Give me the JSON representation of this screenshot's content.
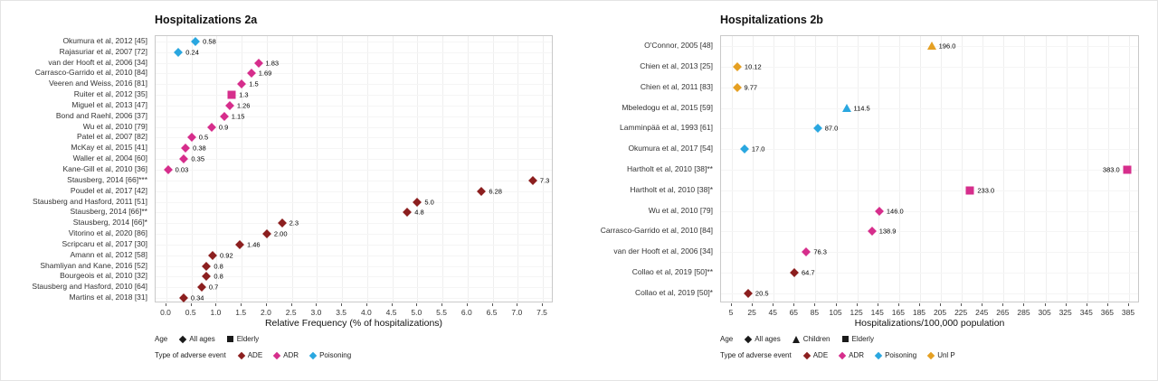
{
  "page": {
    "background": "#ffffff"
  },
  "colors": {
    "ADE": "#8c1f1f",
    "ADR": "#d62e8c",
    "Poisoning": "#2aa7e0",
    "UnlP": "#e5a023",
    "age_legend_marker": "#1a1a1a"
  },
  "chart_data": [
    {
      "type": "scatter",
      "title": "Hospitalizations 2a",
      "xlabel": "Relative Frequency (% of hospitalizations)",
      "ylabel": "",
      "xlim": [
        0,
        7.5
      ],
      "grid": true,
      "legend_position": "bottom",
      "xticks": [
        0,
        0.5,
        1.0,
        1.5,
        2.0,
        2.5,
        3.0,
        3.5,
        4.0,
        4.5,
        5.0,
        5.5,
        6.0,
        6.5,
        7.0,
        7.5
      ],
      "xtick_labels": [
        "0.0",
        "0.5",
        "1.0",
        "1.5",
        "2.0",
        "2.5",
        "3.0",
        "3.5",
        "4.0",
        "4.5",
        "5.0",
        "5.5",
        "6.0",
        "6.5",
        "7.0",
        "7.5"
      ],
      "points": [
        {
          "study": "Okumura et al, 2012 [45]",
          "value": 0.58,
          "label": "0.58",
          "age": "All ages",
          "shape": "diamond",
          "event": "Poisoning"
        },
        {
          "study": "Rajasuriar et al, 2007 [72]",
          "value": 0.24,
          "label": "0.24",
          "age": "All ages",
          "shape": "diamond",
          "event": "Poisoning"
        },
        {
          "study": "van der Hooft et al, 2006 [34]",
          "value": 1.83,
          "label": "1.83",
          "age": "All ages",
          "shape": "diamond",
          "event": "ADR"
        },
        {
          "study": "Carrasco-Garrido et al, 2010 [84]",
          "value": 1.69,
          "label": "1.69",
          "age": "All ages",
          "shape": "diamond",
          "event": "ADR"
        },
        {
          "study": "Veeren and Weiss, 2016 [81]",
          "value": 1.5,
          "label": "1.5",
          "age": "All ages",
          "shape": "diamond",
          "event": "ADR"
        },
        {
          "study": "Ruiter et al, 2012 [35]",
          "value": 1.3,
          "label": "1.3",
          "age": "Elderly",
          "shape": "square",
          "event": "ADR"
        },
        {
          "study": "Miguel et al, 2013 [47]",
          "value": 1.26,
          "label": "1.26",
          "age": "All ages",
          "shape": "diamond",
          "event": "ADR"
        },
        {
          "study": "Bond and Raehl, 2006 [37]",
          "value": 1.15,
          "label": "1.15",
          "age": "All ages",
          "shape": "diamond",
          "event": "ADR"
        },
        {
          "study": "Wu et al, 2010 [79]",
          "value": 0.9,
          "label": "0.9",
          "age": "All ages",
          "shape": "diamond",
          "event": "ADR"
        },
        {
          "study": "Patel et al, 2007 [82]",
          "value": 0.5,
          "label": "0.5",
          "age": "All ages",
          "shape": "diamond",
          "event": "ADR"
        },
        {
          "study": "McKay et al, 2015 [41]",
          "value": 0.38,
          "label": "0.38",
          "age": "All ages",
          "shape": "diamond",
          "event": "ADR"
        },
        {
          "study": "Waller et al, 2004 [60]",
          "value": 0.35,
          "label": "0.35",
          "age": "All ages",
          "shape": "diamond",
          "event": "ADR"
        },
        {
          "study": "Kane-Gill et al, 2010 [36]",
          "value": 0.03,
          "label": "0.03",
          "age": "All ages",
          "shape": "diamond",
          "event": "ADR"
        },
        {
          "study": "Stausberg, 2014 [66]***",
          "value": 7.3,
          "label": "7.3",
          "age": "All ages",
          "shape": "diamond",
          "event": "ADE"
        },
        {
          "study": "Poudel et al, 2017 [42]",
          "value": 6.28,
          "label": "6.28",
          "age": "All ages",
          "shape": "diamond",
          "event": "ADE"
        },
        {
          "study": "Stausberg and Hasford, 2011 [51]",
          "value": 5.0,
          "label": "5.0",
          "age": "All ages",
          "shape": "diamond",
          "event": "ADE"
        },
        {
          "study": "Stausberg, 2014 [66]**",
          "value": 4.8,
          "label": "4.8",
          "age": "All ages",
          "shape": "diamond",
          "event": "ADE"
        },
        {
          "study": "Stausberg, 2014 [66]*",
          "value": 2.3,
          "label": "2.3",
          "age": "All ages",
          "shape": "diamond",
          "event": "ADE"
        },
        {
          "study": "Vitorino et al, 2020 [86]",
          "value": 2.0,
          "label": "2.00",
          "age": "All ages",
          "shape": "diamond",
          "event": "ADE"
        },
        {
          "study": "Scripcaru et al, 2017 [30]",
          "value": 1.46,
          "label": "1.46",
          "age": "All ages",
          "shape": "diamond",
          "event": "ADE"
        },
        {
          "study": "Amann et al, 2012 [58]",
          "value": 0.92,
          "label": "0.92",
          "age": "All ages",
          "shape": "diamond",
          "event": "ADE"
        },
        {
          "study": "Shamliyan and Kane, 2016 [52]",
          "value": 0.8,
          "label": "0.8",
          "age": "All ages",
          "shape": "diamond",
          "event": "ADE"
        },
        {
          "study": "Bourgeois et al, 2010 [32]",
          "value": 0.8,
          "label": "0.8",
          "age": "All ages",
          "shape": "diamond",
          "event": "ADE"
        },
        {
          "study": "Stausberg and Hasford, 2010 [64]",
          "value": 0.7,
          "label": "0.7",
          "age": "All ages",
          "shape": "diamond",
          "event": "ADE"
        },
        {
          "study": "Martins et al, 2018 [31]",
          "value": 0.34,
          "label": "0.34",
          "age": "All ages",
          "shape": "diamond",
          "event": "ADE"
        }
      ],
      "legend": {
        "age_title": "Age",
        "age_items": [
          {
            "label": "All ages",
            "shape": "diamond"
          },
          {
            "label": "Elderly",
            "shape": "square"
          }
        ],
        "event_title": "Type of adverse event",
        "event_items": [
          {
            "label": "ADE",
            "event": "ADE"
          },
          {
            "label": "ADR",
            "event": "ADR"
          },
          {
            "label": "Poisoning",
            "event": "Poisoning"
          }
        ]
      }
    },
    {
      "type": "scatter",
      "title": "Hospitalizations 2b",
      "xlabel": "Hospitalizations/100,000 population",
      "ylabel": "",
      "xlim": [
        5,
        385
      ],
      "grid": true,
      "legend_position": "bottom",
      "xticks": [
        5,
        25,
        45,
        65,
        85,
        105,
        125,
        145,
        165,
        185,
        205,
        225,
        245,
        265,
        285,
        305,
        325,
        345,
        365,
        385
      ],
      "xtick_labels": [
        "5",
        "25",
        "45",
        "65",
        "85",
        "105",
        "125",
        "145",
        "165",
        "185",
        "205",
        "225",
        "245",
        "265",
        "285",
        "305",
        "325",
        "345",
        "365",
        "385"
      ],
      "points": [
        {
          "study": "O'Connor, 2005 [48]",
          "value": 196.0,
          "label": "196.0",
          "age": "Children",
          "shape": "triangle",
          "event": "UnlP"
        },
        {
          "study": "Chien et al, 2013 [25]",
          "value": 10.12,
          "label": "10.12",
          "age": "All ages",
          "shape": "diamond",
          "event": "UnlP"
        },
        {
          "study": "Chien et al, 2011 [83]",
          "value": 9.77,
          "label": "9.77",
          "age": "All ages",
          "shape": "diamond",
          "event": "UnlP"
        },
        {
          "study": "Mbeledogu et al, 2015 [59]",
          "value": 114.5,
          "label": "114.5",
          "age": "Children",
          "shape": "triangle",
          "event": "Poisoning"
        },
        {
          "study": "Lamminpää et al, 1993 [61]",
          "value": 87.0,
          "label": "87.0",
          "age": "All ages",
          "shape": "diamond",
          "event": "Poisoning"
        },
        {
          "study": "Okumura et al, 2017 [54]",
          "value": 17.0,
          "label": "17.0",
          "age": "All ages",
          "shape": "diamond",
          "event": "Poisoning"
        },
        {
          "study": "Hartholt et al, 2010 [38]**",
          "value": 383.0,
          "label": "383.0",
          "age": "Elderly",
          "shape": "square",
          "event": "ADR",
          "label_side": "left"
        },
        {
          "study": "Hartholt et al, 2010 [38]*",
          "value": 233.0,
          "label": "233.0",
          "age": "Elderly",
          "shape": "square",
          "event": "ADR"
        },
        {
          "study": "Wu et al, 2010 [79]",
          "value": 146.0,
          "label": "146.0",
          "age": "All ages",
          "shape": "diamond",
          "event": "ADR"
        },
        {
          "study": "Carrasco-Garrido et al, 2010 [84]",
          "value": 138.9,
          "label": "138.9",
          "age": "All ages",
          "shape": "diamond",
          "event": "ADR"
        },
        {
          "study": "van der Hooft et al, 2006 [34]",
          "value": 76.3,
          "label": "76.3",
          "age": "All ages",
          "shape": "diamond",
          "event": "ADR"
        },
        {
          "study": "Collao et al, 2019 [50]**",
          "value": 64.7,
          "label": "64.7",
          "age": "All ages",
          "shape": "diamond",
          "event": "ADE"
        },
        {
          "study": "Collao et al, 2019 [50]*",
          "value": 20.5,
          "label": "20.5",
          "age": "All ages",
          "shape": "diamond",
          "event": "ADE"
        }
      ],
      "legend": {
        "age_title": "Age",
        "age_items": [
          {
            "label": "All ages",
            "shape": "diamond"
          },
          {
            "label": "Children",
            "shape": "triangle"
          },
          {
            "label": "Elderly",
            "shape": "square"
          }
        ],
        "event_title": "Type of adverse event",
        "event_items": [
          {
            "label": "ADE",
            "event": "ADE"
          },
          {
            "label": "ADR",
            "event": "ADR"
          },
          {
            "label": "Poisoning",
            "event": "Poisoning"
          },
          {
            "label": "Unl P",
            "event": "UnlP"
          }
        ]
      }
    }
  ]
}
